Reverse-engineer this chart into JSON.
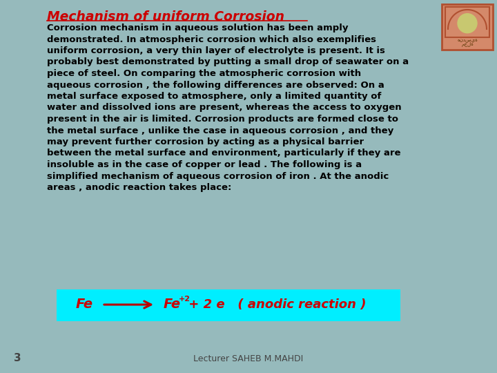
{
  "title": "Mechanism of uniform Corrosion",
  "background_top": "#b8d4dc",
  "background_bottom": "#80aaa8",
  "title_color": "#cc0000",
  "title_fontsize": 13.5,
  "body_text_color": "#000000",
  "body_fontsize": 9.5,
  "body_lines": [
    "Corrosion mechanism in aqueous solution has been amply",
    "demonstrated. In atmospheric corrosion which also exemplifies",
    "uniform corrosion, a very thin layer of electrolyte is present. It is",
    "probably best demonstrated by putting a small drop of seawater on a",
    "piece of steel. On comparing the atmospheric corrosion with",
    "aqueous corrosion , the following differences are observed: On a",
    "metal surface exposed to atmosphere, only a limited quantity of",
    "water and dissolved ions are present, whereas the access to oxygen",
    "present in the air is limited. Corrosion products are formed close to",
    "the metal surface , unlike the case in aqueous corrosion , and they",
    "may prevent further corrosion by acting as a physical barrier",
    "between the metal surface and environment, particularly if they are",
    "insoluble as in the case of copper or lead . The following is a",
    "simplified mechanism of aqueous corrosion of iron . At the anodic",
    "areas , anodic reaction takes place:"
  ],
  "reaction_box_color": "#00eeff",
  "reaction_text_color": "#cc0000",
  "reaction_arrow_color": "#bb0000",
  "footer_text": "Lecturer SAHEB M.MAHDI",
  "footer_page": "3",
  "footer_color": "#444444",
  "footer_fontsize": 9,
  "logo_outer_color": "#d4896a",
  "logo_border_color": "#b05030",
  "logo_inner_color": "#c8c870",
  "logo_text_color": "#553300"
}
